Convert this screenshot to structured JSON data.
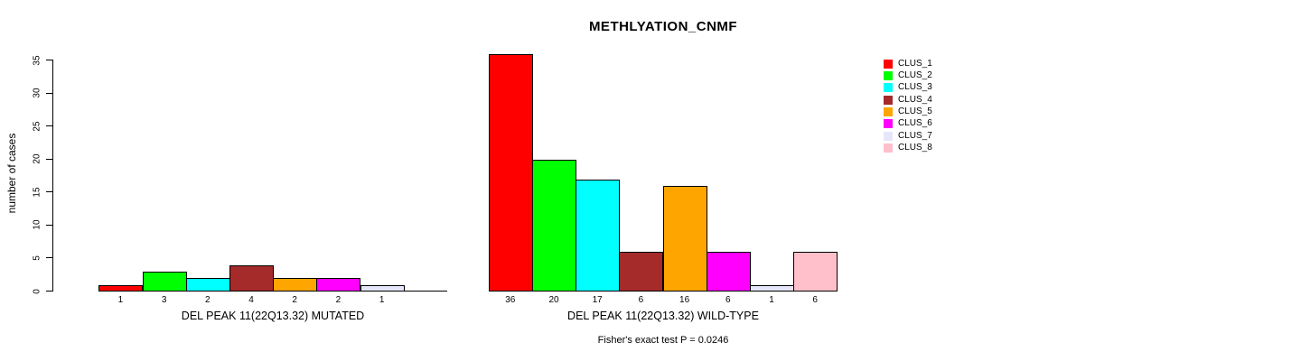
{
  "chart_data": {
    "type": "bar",
    "title": "METHLYATION_CNMF",
    "ylabel": "number of cases",
    "ylim": [
      0,
      35
    ],
    "yticks": [
      0,
      5,
      10,
      15,
      20,
      25,
      30,
      35
    ],
    "grid": false,
    "legend_position": "right",
    "legend": [
      {
        "name": "CLUS_1",
        "color": "#FF0000"
      },
      {
        "name": "CLUS_2",
        "color": "#00FF00"
      },
      {
        "name": "CLUS_3",
        "color": "#00FFFF"
      },
      {
        "name": "CLUS_4",
        "color": "#A52A2A"
      },
      {
        "name": "CLUS_5",
        "color": "#FFA500"
      },
      {
        "name": "CLUS_6",
        "color": "#FF00FF"
      },
      {
        "name": "CLUS_7",
        "color": "#E6E6FA"
      },
      {
        "name": "CLUS_8",
        "color": "#FFC0CB"
      }
    ],
    "panels": [
      {
        "xlabel": "DEL PEAK 11(22Q13.32) MUTATED",
        "values": [
          1,
          3,
          2,
          4,
          2,
          2,
          1,
          0
        ],
        "labels": [
          "1",
          "3",
          "2",
          "4",
          "2",
          "2",
          "1",
          ""
        ]
      },
      {
        "xlabel": "DEL PEAK 11(22Q13.32) WILD-TYPE",
        "values": [
          36,
          20,
          17,
          6,
          16,
          6,
          1,
          6
        ],
        "labels": [
          "36",
          "20",
          "17",
          "6",
          "16",
          "6",
          "1",
          "6"
        ]
      }
    ],
    "annotation": "Fisher's exact test P = 0.0246"
  }
}
